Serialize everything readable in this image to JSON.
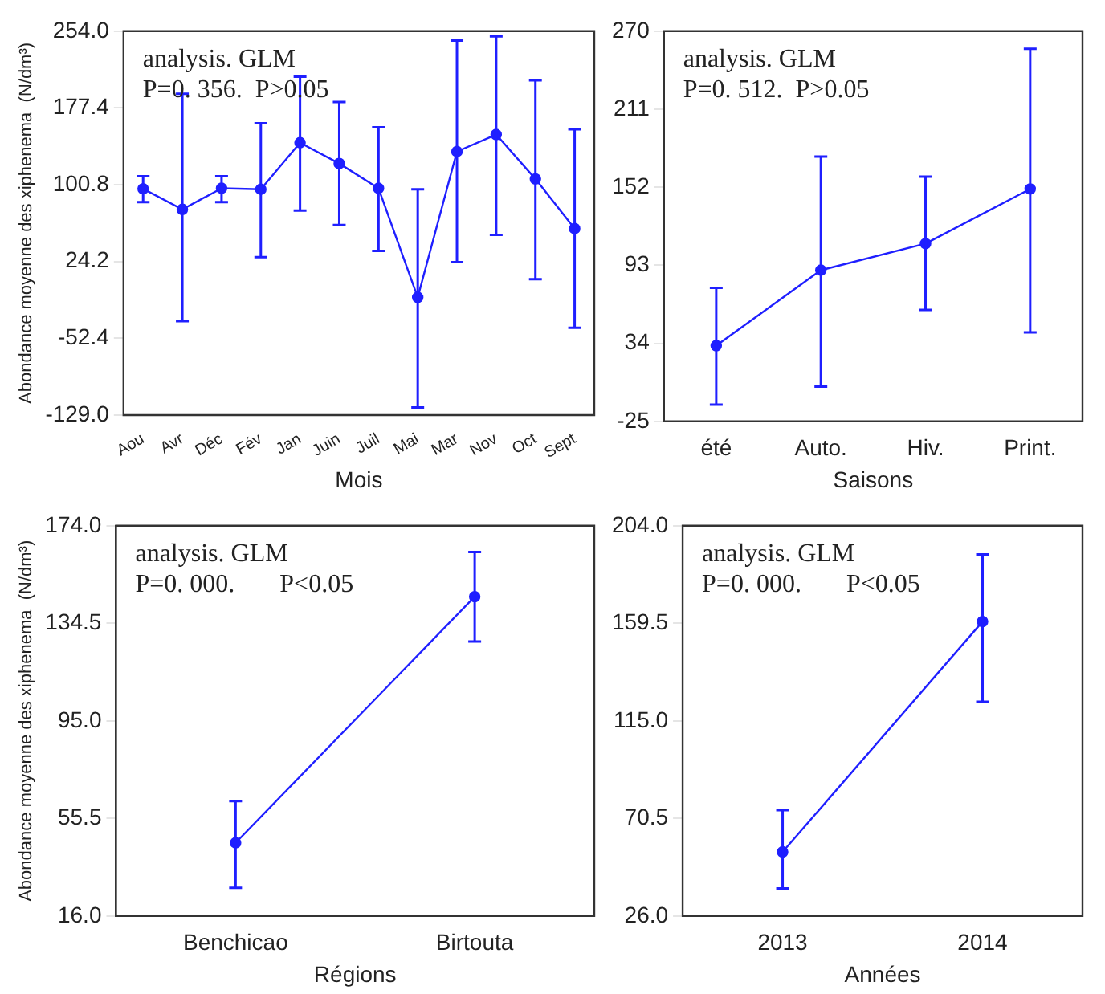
{
  "chart_data": [
    {
      "type": "line",
      "xlabel": "Mois",
      "ylabel": "Abondance moyenne des xiphenema  (N/dm³)",
      "categories": [
        "Aou",
        "Avr",
        "Déc",
        "Fév",
        "Jan",
        "Juin",
        "Juil",
        "Mai",
        "Mar",
        "Nov",
        "Oct",
        "Sept"
      ],
      "series": [
        {
          "color": "#1f1fff",
          "values": [
            96.8,
            76.2,
            97.3,
            96.3,
            142.7,
            122.0,
            97.3,
            -11.5,
            133.9,
            150.9,
            106.6,
            57.1
          ],
          "errors": [
            [
              83.4,
              109.2
            ],
            [
              -35.2,
              191.6
            ],
            [
              83.4,
              109.2
            ],
            [
              28.7,
              162.2
            ],
            [
              75.1,
              208.6
            ],
            [
              60.7,
              183.4
            ],
            [
              34.9,
              158.1
            ],
            [
              -121.3,
              96.3
            ],
            [
              23.6,
              244.7
            ],
            [
              50.9,
              248.8
            ],
            [
              6.6,
              205.0
            ],
            [
              -41.9,
              156.1
            ]
          ]
        }
      ],
      "ylim": [
        -129,
        254
      ],
      "yticks": [
        {
          "value": -129,
          "label": "-129.0"
        },
        -52.4,
        24.2,
        100.8,
        177.4,
        {
          "value": 254,
          "label": "254.0"
        }
      ],
      "marker": "circle",
      "line_style": "solid",
      "annotations": [
        "analysis. GLM",
        "P=0. 356.  P>0.05"
      ]
    },
    {
      "type": "line",
      "xlabel": "Saisons",
      "categories": [
        "été",
        "Auto.",
        "Hiv.",
        "Print."
      ],
      "series": [
        {
          "color": "#1f1fff",
          "values": [
            32.2,
            89.3,
            109.4,
            150.7
          ],
          "errors": [
            [
              -12.3,
              76.0
            ],
            [
              1.3,
              175.2
            ],
            [
              59.2,
              160.0
            ],
            [
              42.3,
              256.7
            ]
          ]
        }
      ],
      "ylim": [
        -25,
        270
      ],
      "yticks": [
        -25,
        34,
        93,
        152,
        211,
        270
      ],
      "marker": "circle",
      "line_style": "solid",
      "annotations": [
        "analysis. GLM",
        "P=0. 512.  P>0.05"
      ]
    },
    {
      "type": "line",
      "xlabel": "Régions",
      "ylabel": "Abondance moyenne des xiphenema  (N/dm³)",
      "categories": [
        "Benchicao",
        "Birtouta"
      ],
      "series": [
        {
          "color": "#1f1fff",
          "values": [
            45.6,
            145.3
          ],
          "errors": [
            [
              27.4,
              62.5
            ],
            [
              127.1,
              163.4
            ]
          ]
        }
      ],
      "ylim": [
        16,
        174
      ],
      "yticks": [
        {
          "value": 16,
          "label": "16.0"
        },
        55.5,
        {
          "value": 95,
          "label": "95.0"
        },
        134.5,
        {
          "value": 174,
          "label": "174.0"
        }
      ],
      "marker": "circle",
      "line_style": "solid",
      "annotations": [
        "analysis. GLM",
        "P=0. 000.       P<0.05"
      ]
    },
    {
      "type": "line",
      "xlabel": "Années",
      "categories": [
        "2013",
        "2014"
      ],
      "series": [
        {
          "color": "#1f1fff",
          "values": [
            55.2,
            160.3
          ],
          "errors": [
            [
              38.6,
              74.3
            ],
            [
              123.7,
              190.9
            ]
          ]
        }
      ],
      "ylim": [
        26,
        204
      ],
      "yticks": [
        {
          "value": 26,
          "label": "26.0"
        },
        70.5,
        {
          "value": 115,
          "label": "115.0"
        },
        159.5,
        {
          "value": 204,
          "label": "204.0"
        }
      ],
      "marker": "circle",
      "line_style": "solid",
      "annotations": [
        "analysis. GLM",
        "P=0. 000.       P<0.05"
      ]
    }
  ]
}
